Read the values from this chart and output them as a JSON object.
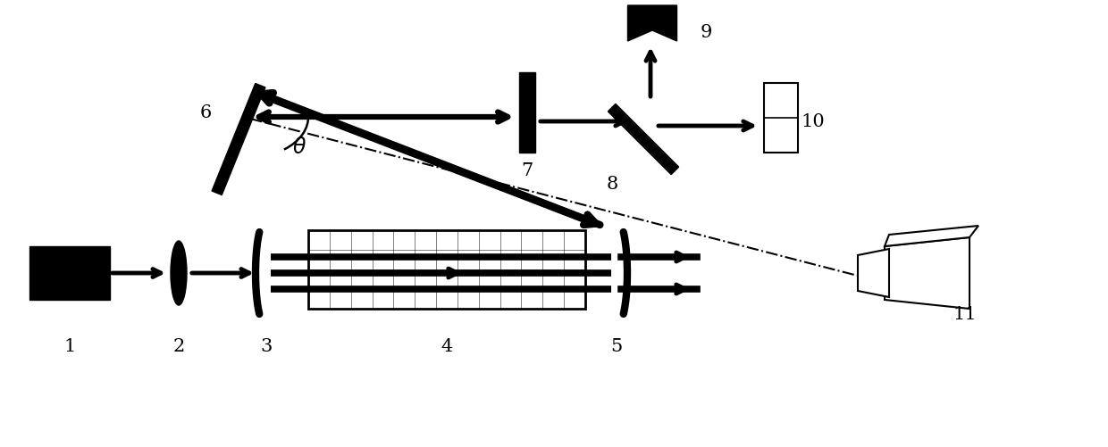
{
  "bg_color": "#ffffff",
  "fig_width": 12.4,
  "fig_height": 5.01,
  "label_fontsize": 15
}
